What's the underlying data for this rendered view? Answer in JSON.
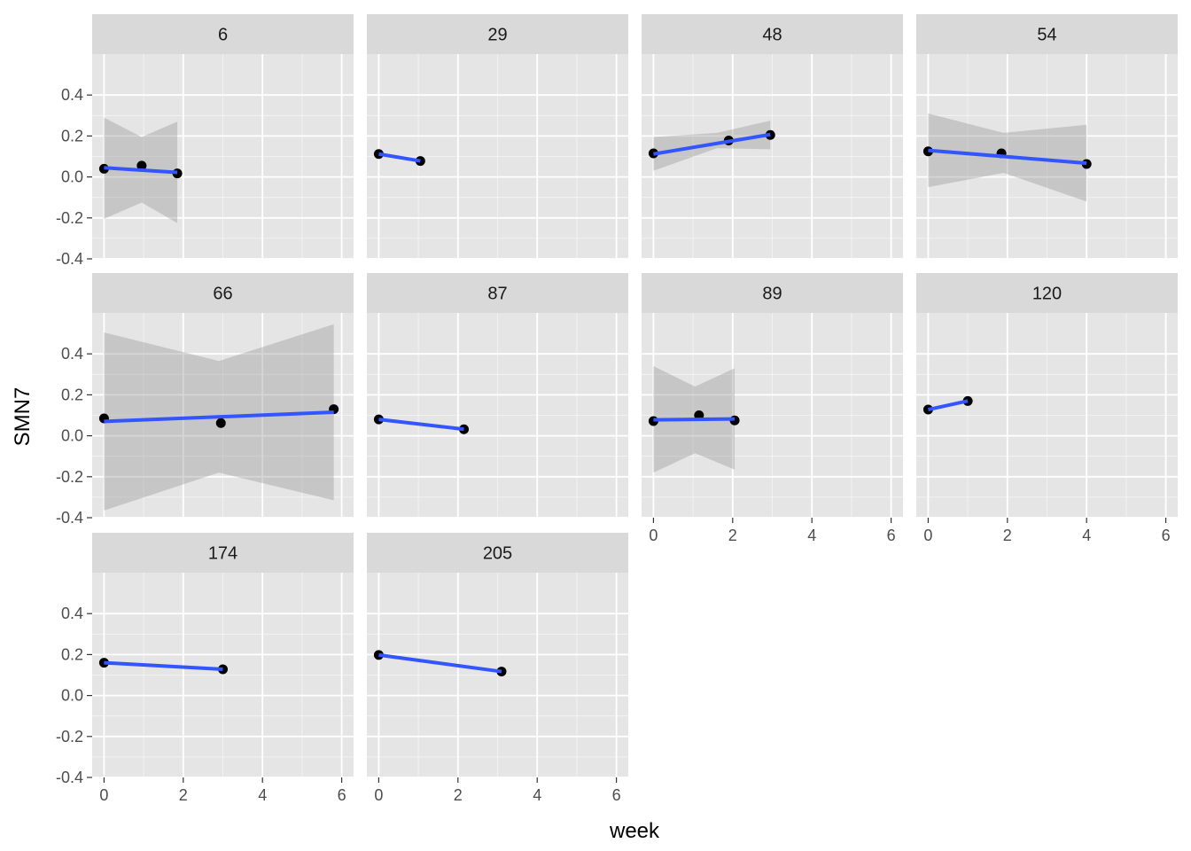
{
  "chart_data": {
    "type": "scatter",
    "subtype": "faceted scatter with linear fit and confidence band",
    "xlabel": "week",
    "ylabel": "SMN7",
    "xlim": [
      -0.3,
      6.3
    ],
    "ylim": [
      -0.4,
      0.6
    ],
    "x_ticks": [
      "0",
      "2",
      "4",
      "6"
    ],
    "y_ticks": [
      "-0.4",
      "-0.2",
      "0.0",
      "0.2",
      "0.4"
    ],
    "grid": true,
    "colors": {
      "panel_background": "#e5e5e5",
      "strip_background": "#d9d9d9",
      "grid": "#ffffff",
      "points": "#000000",
      "fit_line": "#3355ff",
      "band": "#999999"
    },
    "facets": [
      {
        "label": "6",
        "points": [
          [
            0,
            0.04
          ],
          [
            0.95,
            0.055
          ],
          [
            1.85,
            0.017
          ]
        ],
        "fit": [
          [
            0,
            0.045
          ],
          [
            1.85,
            0.022
          ]
        ],
        "band": {
          "lower": [
            [
              0,
              -0.205
            ],
            [
              0.95,
              -0.125
            ],
            [
              1.85,
              -0.225
            ]
          ],
          "upper": [
            [
              0,
              0.29
            ],
            [
              0.95,
              0.195
            ],
            [
              1.85,
              0.27
            ]
          ]
        }
      },
      {
        "label": "29",
        "points": [
          [
            0,
            0.112
          ],
          [
            1.05,
            0.078
          ]
        ],
        "fit": [
          [
            0,
            0.112
          ],
          [
            1.05,
            0.078
          ]
        ]
      },
      {
        "label": "48",
        "points": [
          [
            0,
            0.115
          ],
          [
            1.9,
            0.178
          ],
          [
            2.95,
            0.205
          ]
        ],
        "fit": [
          [
            0,
            0.112
          ],
          [
            2.95,
            0.207
          ]
        ],
        "band": {
          "lower": [
            [
              0,
              0.03
            ],
            [
              1.6,
              0.14
            ],
            [
              2.95,
              0.135
            ]
          ],
          "upper": [
            [
              0,
              0.195
            ],
            [
              1.6,
              0.215
            ],
            [
              2.95,
              0.275
            ]
          ]
        }
      },
      {
        "label": "54",
        "points": [
          [
            0,
            0.125
          ],
          [
            1.85,
            0.115
          ],
          [
            4.0,
            0.063
          ]
        ],
        "fit": [
          [
            0,
            0.13
          ],
          [
            4.0,
            0.067
          ]
        ],
        "band": {
          "lower": [
            [
              0,
              -0.05
            ],
            [
              1.9,
              0.02
            ],
            [
              4.0,
              -0.12
            ]
          ],
          "upper": [
            [
              0,
              0.31
            ],
            [
              1.9,
              0.215
            ],
            [
              4.0,
              0.255
            ]
          ]
        }
      },
      {
        "label": "66",
        "points": [
          [
            0,
            0.085
          ],
          [
            2.95,
            0.062
          ],
          [
            5.8,
            0.13
          ]
        ],
        "fit": [
          [
            0,
            0.07
          ],
          [
            5.8,
            0.115
          ]
        ],
        "band": {
          "lower": [
            [
              0,
              -0.365
            ],
            [
              2.9,
              -0.18
            ],
            [
              5.8,
              -0.315
            ]
          ],
          "upper": [
            [
              0,
              0.505
            ],
            [
              2.9,
              0.365
            ],
            [
              5.8,
              0.545
            ]
          ]
        }
      },
      {
        "label": "87",
        "points": [
          [
            0,
            0.08
          ],
          [
            2.15,
            0.032
          ]
        ],
        "fit": [
          [
            0,
            0.08
          ],
          [
            2.15,
            0.032
          ]
        ]
      },
      {
        "label": "89",
        "points": [
          [
            0,
            0.072
          ],
          [
            1.15,
            0.1
          ],
          [
            2.05,
            0.075
          ]
        ],
        "fit": [
          [
            0,
            0.078
          ],
          [
            2.05,
            0.082
          ]
        ],
        "band": {
          "lower": [
            [
              0,
              -0.18
            ],
            [
              1.05,
              -0.085
            ],
            [
              2.05,
              -0.165
            ]
          ],
          "upper": [
            [
              0,
              0.34
            ],
            [
              1.05,
              0.24
            ],
            [
              2.05,
              0.33
            ]
          ]
        }
      },
      {
        "label": "120",
        "points": [
          [
            0,
            0.128
          ],
          [
            1.0,
            0.17
          ]
        ],
        "fit": [
          [
            0,
            0.128
          ],
          [
            1.0,
            0.17
          ]
        ]
      },
      {
        "label": "174",
        "points": [
          [
            0,
            0.16
          ],
          [
            3.0,
            0.128
          ]
        ],
        "fit": [
          [
            0,
            0.16
          ],
          [
            3.0,
            0.128
          ]
        ]
      },
      {
        "label": "205",
        "points": [
          [
            0,
            0.198
          ],
          [
            3.1,
            0.117
          ]
        ],
        "fit": [
          [
            0,
            0.198
          ],
          [
            3.1,
            0.117
          ]
        ]
      }
    ]
  }
}
